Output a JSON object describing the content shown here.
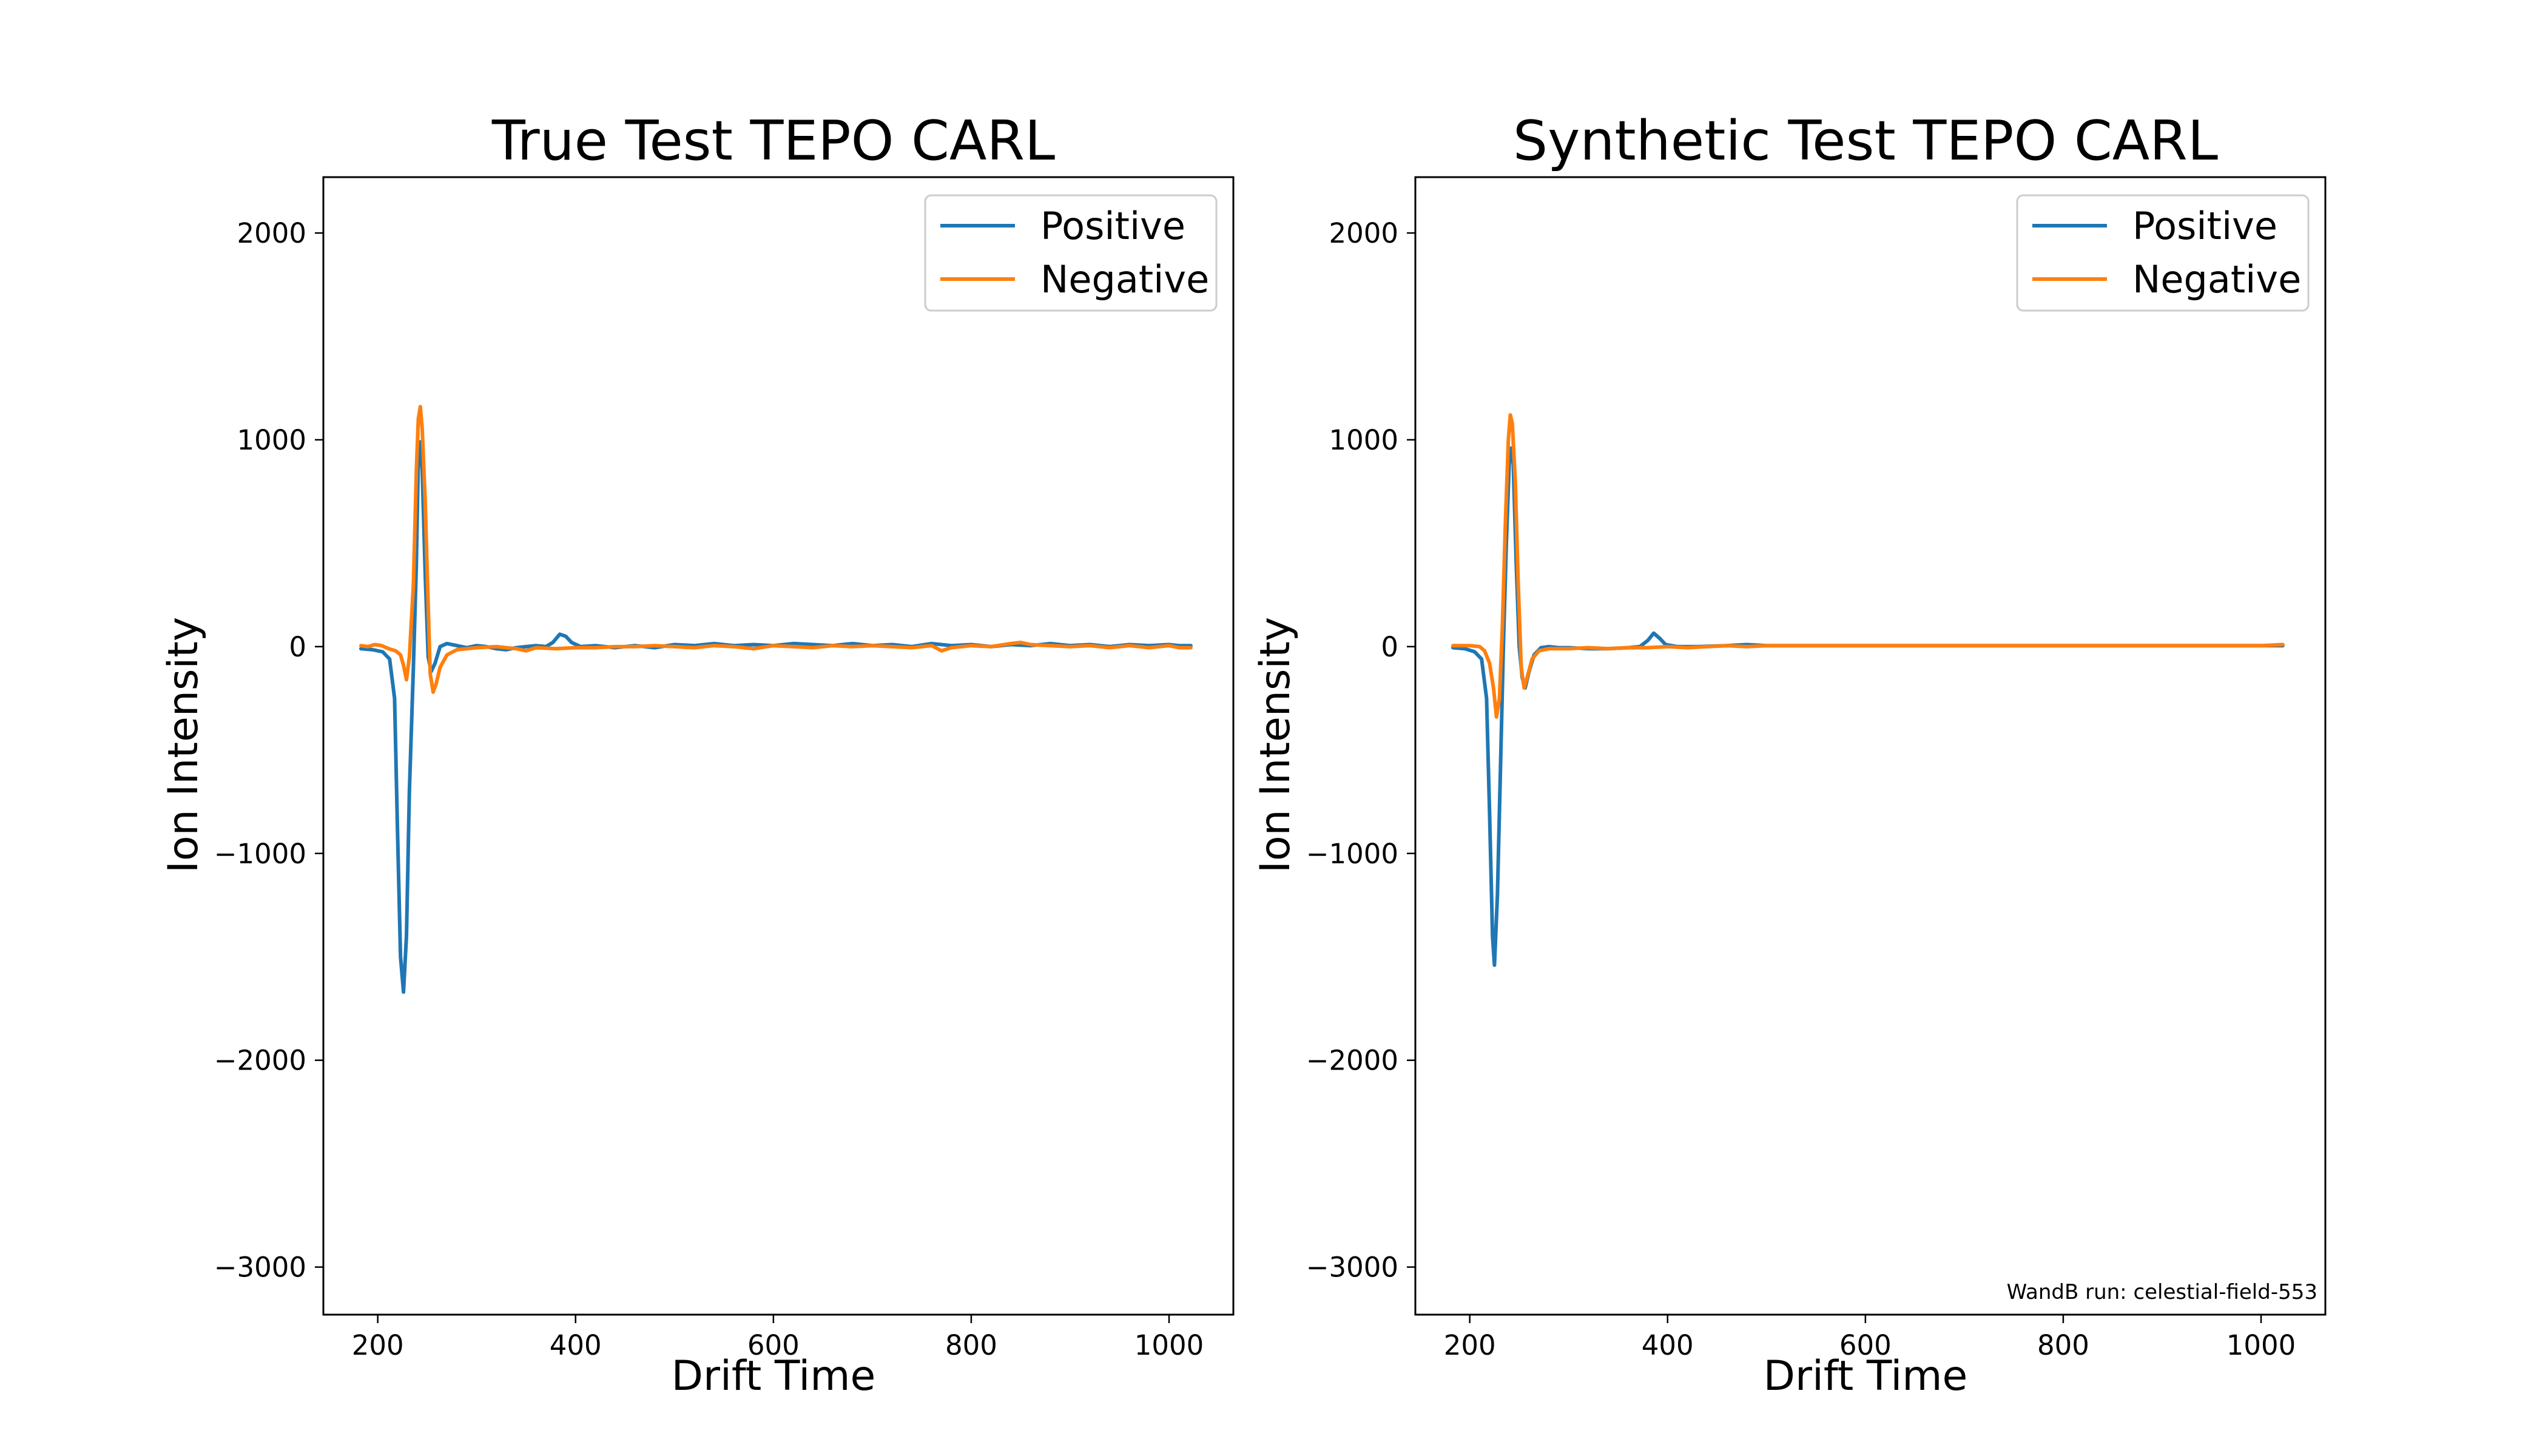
{
  "chart_data": [
    {
      "type": "line",
      "title": "True Test TEPO CARL",
      "xlabel": "Drift Time",
      "ylabel": "Ion Intensity",
      "xlim": [
        145,
        1065
      ],
      "ylim": [
        -3230,
        2270
      ],
      "xticks": [
        200,
        400,
        600,
        800,
        1000
      ],
      "yticks": [
        -3000,
        -2000,
        -1000,
        0,
        1000,
        2000
      ],
      "xtick_labels": [
        "200",
        "400",
        "600",
        "800",
        "1000"
      ],
      "ytick_labels": [
        "−3000",
        "−2000",
        "−1000",
        "0",
        "1000",
        "2000"
      ],
      "grid": false,
      "legend_position": "top-right",
      "series": [
        {
          "name": "Positive",
          "color": "#1f77b4",
          "points": [
            [
              183,
              -10
            ],
            [
              195,
              -15
            ],
            [
              205,
              -25
            ],
            [
              212,
              -60
            ],
            [
              217,
              -250
            ],
            [
              220,
              -900
            ],
            [
              223,
              -1500
            ],
            [
              226,
              -1670
            ],
            [
              229,
              -1400
            ],
            [
              232,
              -700
            ],
            [
              236,
              -100
            ],
            [
              239,
              400
            ],
            [
              241,
              900
            ],
            [
              243,
              990
            ],
            [
              245,
              850
            ],
            [
              248,
              350
            ],
            [
              251,
              -50
            ],
            [
              254,
              -120
            ],
            [
              258,
              -80
            ],
            [
              263,
              0
            ],
            [
              270,
              15
            ],
            [
              280,
              5
            ],
            [
              290,
              -5
            ],
            [
              300,
              5
            ],
            [
              310,
              0
            ],
            [
              320,
              -10
            ],
            [
              330,
              -15
            ],
            [
              340,
              -5
            ],
            [
              350,
              0
            ],
            [
              360,
              5
            ],
            [
              370,
              0
            ],
            [
              377,
              20
            ],
            [
              384,
              60
            ],
            [
              390,
              50
            ],
            [
              396,
              20
            ],
            [
              405,
              0
            ],
            [
              420,
              5
            ],
            [
              440,
              -5
            ],
            [
              460,
              5
            ],
            [
              480,
              -5
            ],
            [
              500,
              10
            ],
            [
              520,
              5
            ],
            [
              540,
              15
            ],
            [
              560,
              5
            ],
            [
              580,
              10
            ],
            [
              600,
              5
            ],
            [
              620,
              15
            ],
            [
              640,
              10
            ],
            [
              660,
              5
            ],
            [
              680,
              15
            ],
            [
              700,
              5
            ],
            [
              720,
              10
            ],
            [
              740,
              0
            ],
            [
              760,
              15
            ],
            [
              780,
              5
            ],
            [
              800,
              10
            ],
            [
              820,
              0
            ],
            [
              840,
              10
            ],
            [
              860,
              5
            ],
            [
              880,
              15
            ],
            [
              900,
              5
            ],
            [
              920,
              10
            ],
            [
              940,
              0
            ],
            [
              960,
              10
            ],
            [
              980,
              5
            ],
            [
              1000,
              10
            ],
            [
              1010,
              5
            ],
            [
              1022,
              5
            ]
          ]
        },
        {
          "name": "Negative",
          "color": "#ff7f0e",
          "points": [
            [
              183,
              5
            ],
            [
              190,
              0
            ],
            [
              197,
              10
            ],
            [
              204,
              5
            ],
            [
              211,
              -10
            ],
            [
              218,
              -20
            ],
            [
              223,
              -40
            ],
            [
              226,
              -90
            ],
            [
              229,
              -160
            ],
            [
              232,
              -50
            ],
            [
              236,
              300
            ],
            [
              239,
              850
            ],
            [
              241,
              1100
            ],
            [
              243,
              1160
            ],
            [
              245,
              1050
            ],
            [
              248,
              700
            ],
            [
              251,
              200
            ],
            [
              253,
              -130
            ],
            [
              256,
              -220
            ],
            [
              259,
              -180
            ],
            [
              263,
              -100
            ],
            [
              270,
              -40
            ],
            [
              280,
              -15
            ],
            [
              290,
              -10
            ],
            [
              300,
              -5
            ],
            [
              320,
              0
            ],
            [
              340,
              -10
            ],
            [
              350,
              -20
            ],
            [
              360,
              -5
            ],
            [
              380,
              -10
            ],
            [
              400,
              -5
            ],
            [
              420,
              -5
            ],
            [
              440,
              0
            ],
            [
              460,
              0
            ],
            [
              480,
              5
            ],
            [
              500,
              0
            ],
            [
              520,
              -5
            ],
            [
              540,
              5
            ],
            [
              560,
              0
            ],
            [
              580,
              -10
            ],
            [
              600,
              5
            ],
            [
              620,
              0
            ],
            [
              640,
              -5
            ],
            [
              660,
              5
            ],
            [
              680,
              0
            ],
            [
              700,
              5
            ],
            [
              720,
              0
            ],
            [
              740,
              -5
            ],
            [
              760,
              5
            ],
            [
              770,
              -20
            ],
            [
              780,
              -5
            ],
            [
              800,
              5
            ],
            [
              820,
              0
            ],
            [
              840,
              15
            ],
            [
              850,
              20
            ],
            [
              860,
              10
            ],
            [
              880,
              5
            ],
            [
              900,
              0
            ],
            [
              920,
              5
            ],
            [
              940,
              -5
            ],
            [
              960,
              5
            ],
            [
              980,
              -5
            ],
            [
              1000,
              5
            ],
            [
              1010,
              -5
            ],
            [
              1022,
              -5
            ]
          ]
        }
      ]
    },
    {
      "type": "line",
      "title": "Synthetic Test TEPO CARL",
      "xlabel": "Drift Time",
      "ylabel": "Ion Intensity",
      "xlim": [
        145,
        1065
      ],
      "ylim": [
        -3230,
        2270
      ],
      "xticks": [
        200,
        400,
        600,
        800,
        1000
      ],
      "yticks": [
        -3000,
        -2000,
        -1000,
        0,
        1000,
        2000
      ],
      "xtick_labels": [
        "200",
        "400",
        "600",
        "800",
        "1000"
      ],
      "ytick_labels": [
        "−3000",
        "−2000",
        "−1000",
        "0",
        "1000",
        "2000"
      ],
      "grid": false,
      "legend_position": "top-right",
      "annotation": "WandB run: celestial-field-553",
      "series": [
        {
          "name": "Positive",
          "color": "#1f77b4",
          "points": [
            [
              183,
              -5
            ],
            [
              195,
              -10
            ],
            [
              205,
              -25
            ],
            [
              212,
              -60
            ],
            [
              217,
              -250
            ],
            [
              220,
              -800
            ],
            [
              223,
              -1400
            ],
            [
              225,
              -1540
            ],
            [
              228,
              -1200
            ],
            [
              231,
              -600
            ],
            [
              234,
              0
            ],
            [
              237,
              500
            ],
            [
              240,
              900
            ],
            [
              242,
              960
            ],
            [
              244,
              880
            ],
            [
              247,
              400
            ],
            [
              250,
              0
            ],
            [
              253,
              -150
            ],
            [
              256,
              -200
            ],
            [
              260,
              -120
            ],
            [
              265,
              -40
            ],
            [
              272,
              -5
            ],
            [
              280,
              0
            ],
            [
              290,
              -5
            ],
            [
              300,
              -5
            ],
            [
              320,
              -10
            ],
            [
              340,
              -10
            ],
            [
              360,
              -5
            ],
            [
              372,
              0
            ],
            [
              380,
              30
            ],
            [
              386,
              65
            ],
            [
              392,
              40
            ],
            [
              398,
              10
            ],
            [
              410,
              0
            ],
            [
              430,
              0
            ],
            [
              460,
              5
            ],
            [
              480,
              10
            ],
            [
              500,
              5
            ],
            [
              530,
              5
            ],
            [
              560,
              5
            ],
            [
              600,
              5
            ],
            [
              650,
              5
            ],
            [
              700,
              5
            ],
            [
              750,
              5
            ],
            [
              800,
              5
            ],
            [
              850,
              5
            ],
            [
              900,
              5
            ],
            [
              950,
              5
            ],
            [
              1000,
              5
            ],
            [
              1022,
              5
            ]
          ]
        },
        {
          "name": "Negative",
          "color": "#ff7f0e",
          "points": [
            [
              183,
              5
            ],
            [
              200,
              5
            ],
            [
              210,
              0
            ],
            [
              215,
              -20
            ],
            [
              220,
              -80
            ],
            [
              224,
              -200
            ],
            [
              227,
              -340
            ],
            [
              230,
              -250
            ],
            [
              233,
              100
            ],
            [
              236,
              600
            ],
            [
              239,
              1000
            ],
            [
              241,
              1120
            ],
            [
              243,
              1080
            ],
            [
              246,
              800
            ],
            [
              249,
              300
            ],
            [
              252,
              -100
            ],
            [
              255,
              -200
            ],
            [
              258,
              -150
            ],
            [
              263,
              -60
            ],
            [
              270,
              -20
            ],
            [
              280,
              -10
            ],
            [
              300,
              -10
            ],
            [
              320,
              -5
            ],
            [
              340,
              -10
            ],
            [
              360,
              -5
            ],
            [
              380,
              -5
            ],
            [
              400,
              0
            ],
            [
              420,
              -5
            ],
            [
              440,
              0
            ],
            [
              460,
              5
            ],
            [
              480,
              0
            ],
            [
              500,
              5
            ],
            [
              550,
              5
            ],
            [
              600,
              5
            ],
            [
              650,
              5
            ],
            [
              700,
              5
            ],
            [
              750,
              5
            ],
            [
              800,
              5
            ],
            [
              850,
              5
            ],
            [
              900,
              5
            ],
            [
              950,
              5
            ],
            [
              1000,
              5
            ],
            [
              1022,
              10
            ]
          ]
        }
      ]
    }
  ]
}
